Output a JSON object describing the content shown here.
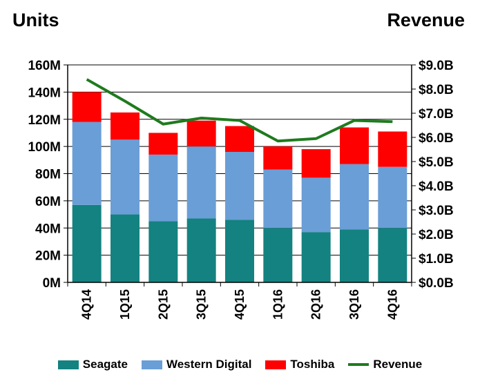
{
  "left_axis_title": "Units",
  "right_axis_title": "Revenue",
  "colors": {
    "seagate": "#138280",
    "western_digital": "#6A9ED7",
    "toshiba": "#FF0000",
    "revenue": "#1E7B1E"
  },
  "chart_data": {
    "type": "bar",
    "stacked": true,
    "categories": [
      "4Q14",
      "1Q15",
      "2Q15",
      "3Q15",
      "4Q15",
      "1Q16",
      "2Q16",
      "3Q16",
      "4Q16"
    ],
    "series": [
      {
        "name": "Seagate",
        "values": [
          57,
          50,
          45,
          47,
          46,
          40,
          37,
          39,
          40
        ]
      },
      {
        "name": "Western Digital",
        "values": [
          61,
          55,
          49,
          53,
          50,
          43,
          40,
          48,
          45
        ]
      },
      {
        "name": "Toshiba",
        "values": [
          22,
          20,
          16,
          19,
          19,
          17,
          21,
          27,
          26
        ]
      }
    ],
    "line_series": {
      "name": "Revenue",
      "axis": "right",
      "values": [
        8.4,
        7.5,
        6.55,
        6.8,
        6.7,
        5.85,
        5.95,
        6.7,
        6.65
      ]
    },
    "y_left": {
      "min": 0,
      "max": 160,
      "step": 20,
      "labels": [
        "0M",
        "20M",
        "40M",
        "60M",
        "80M",
        "100M",
        "120M",
        "140M",
        "160M"
      ]
    },
    "y_right": {
      "min": 0,
      "max": 9,
      "step": 1,
      "labels": [
        "$0.0B",
        "$1.0B",
        "$2.0B",
        "$3.0B",
        "$4.0B",
        "$5.0B",
        "$6.0B",
        "$7.0B",
        "$8.0B",
        "$9.0B"
      ]
    },
    "grid": true,
    "legend_position": "bottom"
  },
  "legend": [
    "Seagate",
    "Western Digital",
    "Toshiba",
    "Revenue"
  ]
}
